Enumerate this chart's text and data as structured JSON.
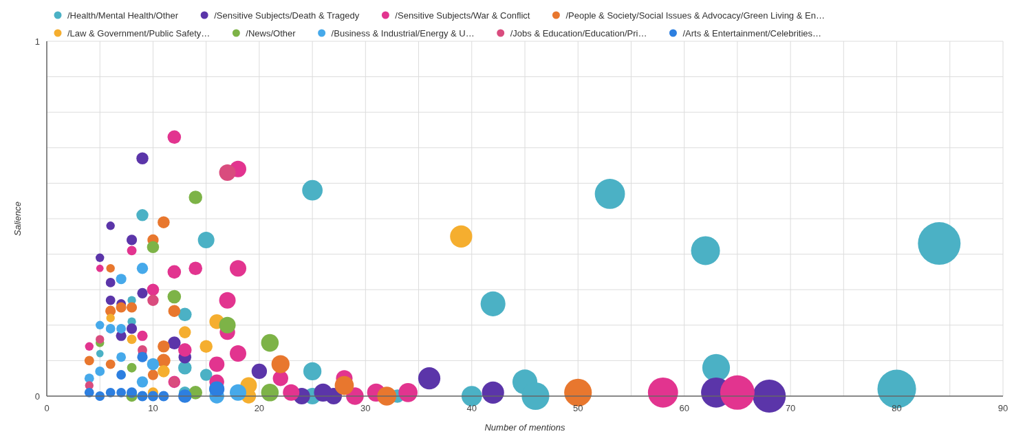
{
  "chart_data": {
    "type": "bubble",
    "xlabel": "Number of mentions",
    "ylabel": "Salience",
    "xlim": [
      0,
      90
    ],
    "ylim": [
      0,
      1
    ],
    "xticks": [
      0,
      {
        "value": 5,
        "label": null
      },
      10,
      {
        "value": 15,
        "label": null
      },
      20,
      {
        "value": 25,
        "label": null
      },
      30,
      {
        "value": 35,
        "label": null
      },
      40,
      {
        "value": 45,
        "label": null
      },
      50,
      {
        "value": 55,
        "label": null
      },
      60,
      {
        "value": 65,
        "label": null
      },
      70,
      {
        "value": 75,
        "label": null
      },
      80,
      {
        "value": 85,
        "label": null
      },
      90
    ],
    "yticks": [
      0,
      {
        "value": 0.1,
        "label": null
      },
      {
        "value": 0.2,
        "label": null
      },
      {
        "value": 0.3,
        "label": null
      },
      {
        "value": 0.4,
        "label": null
      },
      {
        "value": 0.5,
        "label": null
      },
      {
        "value": 0.6,
        "label": null
      },
      {
        "value": 0.7,
        "label": null
      },
      {
        "value": 0.8,
        "label": null
      },
      {
        "value": 0.9,
        "label": null
      },
      1
    ],
    "grid": true,
    "legend": "top",
    "series": [
      {
        "name": "/Health/Mental Health/Other",
        "color": "#4bb1c5",
        "x": [
          25,
          53,
          62,
          84,
          42,
          63,
          80,
          45,
          46,
          40,
          25,
          15,
          9,
          13,
          13,
          15,
          13,
          8,
          8,
          5,
          25,
          33
        ],
        "values": [
          0.58,
          0.57,
          0.41,
          0.43,
          0.26,
          0.08,
          0.02,
          0.04,
          0.0,
          0.0,
          0.07,
          0.44,
          0.51,
          0.23,
          0.08,
          0.06,
          0.01,
          0.27,
          0.21,
          0.12,
          0.0,
          0.0
        ],
        "sizes": [
          0.23,
          0.5,
          0.46,
          1,
          0.34,
          0.42,
          0.82,
          0.34,
          0.42,
          0.23,
          0.18,
          0.15,
          0.08,
          0.1,
          0.1,
          0.08,
          0.08,
          0.04,
          0.04,
          0.03,
          0.15,
          0.1
        ]
      },
      {
        "name": "/Sensitive Subjects/Death & Tragedy",
        "color": "#5b35a9",
        "x": [
          9,
          6,
          8,
          5,
          6,
          9,
          6,
          7,
          8,
          7,
          12,
          13,
          20,
          36,
          42,
          63,
          68,
          27,
          26,
          24,
          9
        ],
        "values": [
          0.67,
          0.48,
          0.44,
          0.39,
          0.32,
          0.29,
          0.27,
          0.26,
          0.19,
          0.17,
          0.15,
          0.11,
          0.07,
          0.05,
          0.01,
          0.01,
          0.0,
          0.0,
          0.01,
          0.0,
          0.12
        ],
        "sizes": [
          0.08,
          0.04,
          0.06,
          0.04,
          0.05,
          0.06,
          0.05,
          0.05,
          0.06,
          0.06,
          0.09,
          0.09,
          0.13,
          0.27,
          0.27,
          0.5,
          0.6,
          0.15,
          0.18,
          0.15,
          0.04
        ]
      },
      {
        "name": "/Sensitive Subjects/War & Conflict",
        "color": "#e2348f",
        "x": [
          12,
          18,
          5,
          8,
          12,
          14,
          18,
          17,
          17,
          18,
          10,
          9,
          13,
          16,
          16,
          12,
          65,
          58,
          34,
          31,
          29,
          28,
          23,
          22,
          4
        ],
        "values": [
          0.73,
          0.64,
          0.36,
          0.41,
          0.35,
          0.36,
          0.36,
          0.27,
          0.18,
          0.12,
          0.3,
          0.17,
          0.13,
          0.09,
          0.04,
          0.04,
          0.01,
          0.01,
          0.01,
          0.01,
          0.0,
          0.05,
          0.01,
          0.05,
          0.14
        ],
        "sizes": [
          0.1,
          0.15,
          0.03,
          0.05,
          0.1,
          0.1,
          0.15,
          0.15,
          0.13,
          0.15,
          0.08,
          0.06,
          0.1,
          0.13,
          0.12,
          0.08,
          0.65,
          0.5,
          0.2,
          0.18,
          0.17,
          0.15,
          0.15,
          0.13,
          0.04
        ]
      },
      {
        "name": "/People & Society/Social Issues & Advocacy/Green Living & En…",
        "color": "#e8772e",
        "x": [
          11,
          10,
          6,
          6,
          7,
          8,
          12,
          11,
          11,
          4,
          6,
          22,
          28,
          32,
          50,
          10
        ],
        "values": [
          0.49,
          0.44,
          0.36,
          0.24,
          0.25,
          0.25,
          0.24,
          0.14,
          0.1,
          0.1,
          0.09,
          0.09,
          0.03,
          0.0,
          0.01,
          0.06
        ],
        "sizes": [
          0.08,
          0.07,
          0.04,
          0.06,
          0.06,
          0.06,
          0.08,
          0.08,
          0.1,
          0.05,
          0.05,
          0.18,
          0.2,
          0.2,
          0.42,
          0.06
        ]
      },
      {
        "name": "/Law & Government/Public Safety…",
        "color": "#f5ae2f",
        "x": [
          39,
          6,
          8,
          13,
          16,
          15,
          11,
          19,
          19,
          10
        ],
        "values": [
          0.45,
          0.22,
          0.16,
          0.18,
          0.21,
          0.14,
          0.07,
          0.03,
          0.0,
          0.01
        ],
        "sizes": [
          0.27,
          0.04,
          0.05,
          0.08,
          0.12,
          0.09,
          0.08,
          0.15,
          0.12,
          0.06
        ]
      },
      {
        "name": "/News/Other",
        "color": "#7db347",
        "x": [
          14,
          10,
          12,
          17,
          21,
          5,
          8,
          21,
          14,
          8
        ],
        "values": [
          0.56,
          0.42,
          0.28,
          0.2,
          0.15,
          0.15,
          0.08,
          0.01,
          0.01,
          0.0
        ],
        "sizes": [
          0.1,
          0.08,
          0.1,
          0.15,
          0.17,
          0.04,
          0.05,
          0.17,
          0.1,
          0.07
        ]
      },
      {
        "name": "/Business & Industrial/Energy & U…",
        "color": "#46a9ea",
        "x": [
          9,
          7,
          5,
          6,
          7,
          10,
          7,
          4,
          5,
          18,
          16,
          9
        ],
        "values": [
          0.36,
          0.33,
          0.2,
          0.19,
          0.19,
          0.09,
          0.11,
          0.05,
          0.07,
          0.01,
          0.0,
          0.04
        ],
        "sizes": [
          0.07,
          0.06,
          0.04,
          0.05,
          0.05,
          0.08,
          0.05,
          0.05,
          0.05,
          0.15,
          0.12,
          0.07
        ]
      },
      {
        "name": "/Jobs & Education/Education/Pri…",
        "color": "#d94c7e",
        "x": [
          17,
          10,
          5,
          9,
          4,
          12
        ],
        "values": [
          0.63,
          0.27,
          0.16,
          0.13,
          0.03,
          0.04
        ],
        "sizes": [
          0.15,
          0.07,
          0.04,
          0.05,
          0.04,
          0.06
        ]
      },
      {
        "name": "/Arts & Entertainment/Celebrities…",
        "color": "#2d7fe0",
        "x": [
          9,
          7,
          4,
          6,
          8,
          9,
          10,
          11,
          13,
          16,
          5,
          7
        ],
        "values": [
          0.11,
          0.06,
          0.01,
          0.01,
          0.01,
          0.0,
          0.0,
          0.0,
          0.0,
          0.02,
          0.0,
          0.01
        ],
        "sizes": [
          0.06,
          0.05,
          0.05,
          0.05,
          0.06,
          0.06,
          0.06,
          0.06,
          0.1,
          0.13,
          0.05,
          0.05
        ]
      }
    ]
  }
}
